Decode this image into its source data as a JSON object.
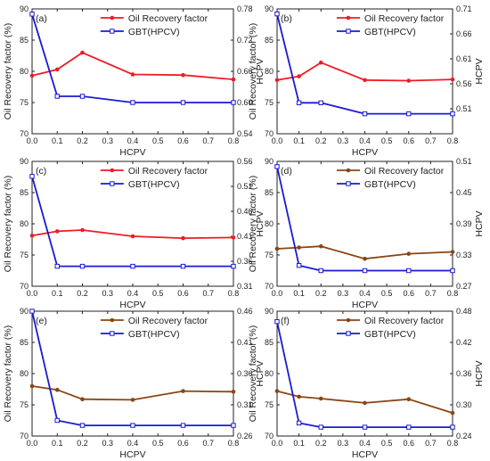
{
  "chart_data": [
    {
      "type": "line",
      "panel_label": "(a)",
      "x": [
        0.0,
        0.1,
        0.2,
        0.4,
        0.6,
        0.8
      ],
      "xlabel": "HCPV",
      "ylabel": "Oil Recovery factor (%)",
      "y2label": "HCPV",
      "xlim": [
        0.0,
        0.8
      ],
      "xticks": [
        "0.0",
        "0.1",
        "0.2",
        "0.3",
        "0.4",
        "0.5",
        "0.6",
        "0.7",
        "0.8"
      ],
      "ylim": [
        70,
        90
      ],
      "yticks": [
        "70",
        "75",
        "80",
        "85",
        "90"
      ],
      "y2lim": [
        0.54,
        0.78
      ],
      "y2ticks": [
        "0.54",
        "0.60",
        "0.66",
        "0.72",
        "0.78"
      ],
      "legend_position": "top-right",
      "series": [
        {
          "name": "Oil Recovery factor",
          "axis": "left",
          "color": "#ee1c24",
          "marker": "filled-circle",
          "values": [
            79.3,
            80.3,
            83.0,
            79.5,
            79.4,
            78.7
          ]
        },
        {
          "name": "GBT(HPCV)",
          "axis": "right",
          "color": "#1a1ad6",
          "marker": "open-square",
          "values": [
            0.77,
            0.612,
            0.612,
            0.6,
            0.6,
            0.6
          ]
        }
      ]
    },
    {
      "type": "line",
      "panel_label": "(b)",
      "x": [
        0.0,
        0.1,
        0.2,
        0.4,
        0.6,
        0.8
      ],
      "xlabel": "HCPV",
      "ylabel": "Oil Recovery factor (%)",
      "y2label": "HCPV",
      "xlim": [
        0.0,
        0.8
      ],
      "xticks": [
        "0.0",
        "0.1",
        "0.2",
        "0.3",
        "0.4",
        "0.5",
        "0.6",
        "0.7",
        "0.8"
      ],
      "ylim": [
        70,
        90
      ],
      "yticks": [
        "70",
        "75",
        "80",
        "85",
        "90"
      ],
      "y2lim": [
        0.46,
        0.71
      ],
      "y2ticks": [
        "0.51",
        "0.56",
        "0.61",
        "0.66",
        "0.71"
      ],
      "legend_position": "top-right",
      "series": [
        {
          "name": "Oil Recovery factor",
          "axis": "left",
          "color": "#ee1c24",
          "marker": "filled-circle",
          "values": [
            78.6,
            79.2,
            81.4,
            78.6,
            78.5,
            78.7
          ]
        },
        {
          "name": "GBT(HPCV)",
          "axis": "right",
          "color": "#1a1ad6",
          "marker": "open-square",
          "values": [
            0.7,
            0.522,
            0.522,
            0.5,
            0.5,
            0.5
          ]
        }
      ]
    },
    {
      "type": "line",
      "panel_label": "(c)",
      "x": [
        0.0,
        0.1,
        0.2,
        0.4,
        0.6,
        0.8
      ],
      "xlabel": "HCPV",
      "ylabel": "Oil Recovery factor (%)",
      "y2label": "HCPV",
      "xlim": [
        0.0,
        0.8
      ],
      "xticks": [
        "0.0",
        "0.1",
        "0.2",
        "0.3",
        "0.4",
        "0.5",
        "0.6",
        "0.7",
        "0.8"
      ],
      "ylim": [
        70,
        90
      ],
      "yticks": [
        "70",
        "75",
        "80",
        "85",
        "90"
      ],
      "y2lim": [
        0.31,
        0.56
      ],
      "y2ticks": [
        "0.31",
        "0.36",
        "0.41",
        "0.46",
        "0.51",
        "0.56"
      ],
      "legend_position": "top-right",
      "series": [
        {
          "name": "Oil Recovery factor",
          "axis": "left",
          "color": "#ee1c24",
          "marker": "filled-circle",
          "values": [
            78.1,
            78.8,
            79.0,
            78.0,
            77.7,
            77.8
          ]
        },
        {
          "name": "GBT(HPCV)",
          "axis": "right",
          "color": "#1a1ad6",
          "marker": "open-square",
          "values": [
            0.53,
            0.35,
            0.35,
            0.35,
            0.35,
            0.35
          ]
        }
      ]
    },
    {
      "type": "line",
      "panel_label": "(d)",
      "x": [
        0.0,
        0.1,
        0.2,
        0.4,
        0.6,
        0.8
      ],
      "xlabel": "HCPV",
      "ylabel": "Oil Recovery factor (%)",
      "y2label": "HCPV",
      "xlim": [
        0.0,
        0.8
      ],
      "xticks": [
        "0.0",
        "0.1",
        "0.2",
        "0.3",
        "0.4",
        "0.5",
        "0.6",
        "0.7",
        "0.8"
      ],
      "ylim": [
        70,
        90
      ],
      "yticks": [
        "70",
        "75",
        "80",
        "85",
        "90"
      ],
      "y2lim": [
        0.27,
        0.51
      ],
      "y2ticks": [
        "0.27",
        "0.33",
        "0.39",
        "0.45",
        "0.51"
      ],
      "legend_position": "top-right",
      "series": [
        {
          "name": "Oil Recovery factor",
          "axis": "left",
          "color": "#8b4513",
          "marker": "filled-circle",
          "values": [
            76.0,
            76.2,
            76.4,
            74.4,
            75.2,
            75.5
          ]
        },
        {
          "name": "GBT(HPCV)",
          "axis": "right",
          "color": "#1a1ad6",
          "marker": "open-square",
          "values": [
            0.5,
            0.31,
            0.3,
            0.3,
            0.3,
            0.3
          ]
        }
      ]
    },
    {
      "type": "line",
      "panel_label": "(e)",
      "x": [
        0.0,
        0.1,
        0.2,
        0.4,
        0.6,
        0.8
      ],
      "xlabel": "HCPV",
      "ylabel": "Oil Recovery factor (%)",
      "y2label": "HCPV",
      "xlim": [
        0.0,
        0.8
      ],
      "xticks": [
        "0.0",
        "0.1",
        "0.2",
        "0.3",
        "0.4",
        "0.5",
        "0.6",
        "0.7",
        "0.8"
      ],
      "ylim": [
        70,
        90
      ],
      "yticks": [
        "70",
        "75",
        "80",
        "85",
        "90"
      ],
      "y2lim": [
        0.26,
        0.46
      ],
      "y2ticks": [
        "0.26",
        "0.31",
        "0.36",
        "0.41",
        "0.46"
      ],
      "legend_position": "top-right",
      "series": [
        {
          "name": "Oil Recovery factor",
          "axis": "left",
          "color": "#8b4513",
          "marker": "filled-circle",
          "values": [
            78.0,
            77.4,
            75.9,
            75.8,
            77.2,
            77.1
          ]
        },
        {
          "name": "GBT(HPCV)",
          "axis": "right",
          "color": "#1a1ad6",
          "marker": "open-square",
          "values": [
            0.46,
            0.285,
            0.277,
            0.277,
            0.277,
            0.277
          ]
        }
      ]
    },
    {
      "type": "line",
      "panel_label": "(f)",
      "x": [
        0.0,
        0.1,
        0.2,
        0.4,
        0.6,
        0.8
      ],
      "xlabel": "HCPV",
      "ylabel": "Oil Recovery factor (%)",
      "y2label": "HCPV",
      "xlim": [
        0.0,
        0.8
      ],
      "xticks": [
        "0.0",
        "0.1",
        "0.2",
        "0.3",
        "0.4",
        "0.5",
        "0.6",
        "0.7",
        "0.8"
      ],
      "ylim": [
        70,
        90
      ],
      "yticks": [
        "70",
        "75",
        "80",
        "85",
        "90"
      ],
      "y2lim": [
        0.24,
        0.48
      ],
      "y2ticks": [
        "0.24",
        "0.30",
        "0.36",
        "0.42",
        "0.48"
      ],
      "legend_position": "top-right",
      "series": [
        {
          "name": "Oil Recovery factor",
          "axis": "left",
          "color": "#8b4513",
          "marker": "filled-circle",
          "values": [
            77.2,
            76.3,
            76.0,
            75.3,
            75.9,
            73.7
          ]
        },
        {
          "name": "GBT(HPCV)",
          "axis": "right",
          "color": "#1a1ad6",
          "marker": "open-square",
          "values": [
            0.46,
            0.265,
            0.257,
            0.257,
            0.257,
            0.257
          ]
        }
      ]
    }
  ]
}
